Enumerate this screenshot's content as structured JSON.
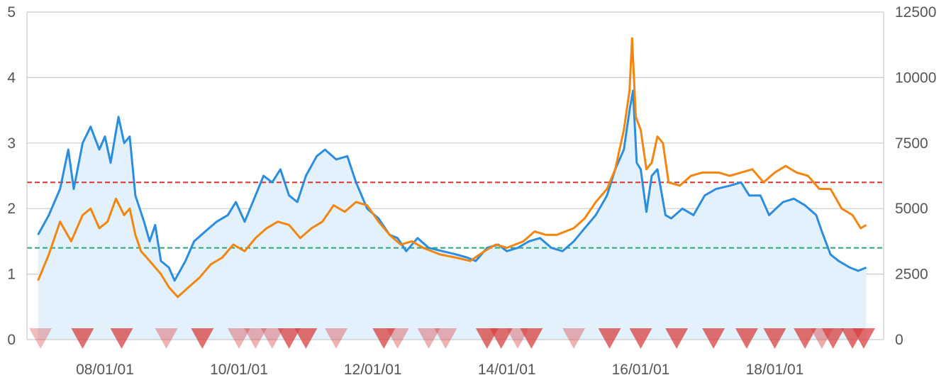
{
  "chart_data": {
    "type": "line",
    "x_domain": [
      "2007-01-01",
      "2018-12-01"
    ],
    "x_ticks": [
      {
        "label": "08/01/01",
        "date": "2008-01-01"
      },
      {
        "label": "10/01/01",
        "date": "2010-01-01"
      },
      {
        "label": "12/01/01",
        "date": "2012-01-01"
      },
      {
        "label": "14/01/01",
        "date": "2014-01-01"
      },
      {
        "label": "16/01/01",
        "date": "2016-01-01"
      },
      {
        "label": "18/01/01",
        "date": "2018-01-01"
      }
    ],
    "y_left": {
      "ylim": [
        0,
        5
      ],
      "ticks": [
        "0",
        "1",
        "2",
        "3",
        "4",
        "5"
      ]
    },
    "y_right": {
      "ylim": [
        0,
        12500
      ],
      "ticks": [
        "0",
        "2500",
        "5000",
        "7500",
        "10000",
        "12500"
      ]
    },
    "grid": true,
    "series": [
      {
        "color": "#2b8de0",
        "axis": "left",
        "fill": "#e3f1fc",
        "points": [
          [
            "2007-01-01",
            1.6
          ],
          [
            "2007-03-01",
            1.9
          ],
          [
            "2007-05-01",
            2.3
          ],
          [
            "2007-06-15",
            2.9
          ],
          [
            "2007-07-15",
            2.3
          ],
          [
            "2007-09-01",
            3.0
          ],
          [
            "2007-10-15",
            3.25
          ],
          [
            "2007-12-01",
            2.9
          ],
          [
            "2008-01-01",
            3.1
          ],
          [
            "2008-02-01",
            2.7
          ],
          [
            "2008-03-15",
            3.4
          ],
          [
            "2008-04-15",
            3.0
          ],
          [
            "2008-05-15",
            3.1
          ],
          [
            "2008-06-15",
            2.2
          ],
          [
            "2008-08-01",
            1.8
          ],
          [
            "2008-09-01",
            1.5
          ],
          [
            "2008-10-01",
            1.75
          ],
          [
            "2008-11-01",
            1.2
          ],
          [
            "2008-12-15",
            1.1
          ],
          [
            "2009-01-15",
            0.9
          ],
          [
            "2009-03-15",
            1.2
          ],
          [
            "2009-05-01",
            1.5
          ],
          [
            "2009-07-01",
            1.65
          ],
          [
            "2009-09-01",
            1.8
          ],
          [
            "2009-11-01",
            1.9
          ],
          [
            "2009-12-15",
            2.1
          ],
          [
            "2010-02-01",
            1.8
          ],
          [
            "2010-04-01",
            2.2
          ],
          [
            "2010-05-15",
            2.5
          ],
          [
            "2010-07-01",
            2.4
          ],
          [
            "2010-08-15",
            2.6
          ],
          [
            "2010-10-01",
            2.2
          ],
          [
            "2010-11-15",
            2.1
          ],
          [
            "2011-01-01",
            2.5
          ],
          [
            "2011-03-01",
            2.8
          ],
          [
            "2011-04-15",
            2.9
          ],
          [
            "2011-06-15",
            2.75
          ],
          [
            "2011-08-15",
            2.8
          ],
          [
            "2011-10-01",
            2.4
          ],
          [
            "2011-12-01",
            2.0
          ],
          [
            "2012-02-01",
            1.85
          ],
          [
            "2012-04-01",
            1.6
          ],
          [
            "2012-05-15",
            1.55
          ],
          [
            "2012-07-01",
            1.35
          ],
          [
            "2012-09-01",
            1.55
          ],
          [
            "2012-11-01",
            1.4
          ],
          [
            "2013-01-15",
            1.35
          ],
          [
            "2013-04-01",
            1.3
          ],
          [
            "2013-06-01",
            1.25
          ],
          [
            "2013-07-15",
            1.2
          ],
          [
            "2013-09-15",
            1.4
          ],
          [
            "2013-11-15",
            1.45
          ],
          [
            "2014-01-01",
            1.35
          ],
          [
            "2014-03-01",
            1.4
          ],
          [
            "2014-05-01",
            1.5
          ],
          [
            "2014-07-01",
            1.55
          ],
          [
            "2014-09-01",
            1.4
          ],
          [
            "2014-11-01",
            1.35
          ],
          [
            "2015-01-01",
            1.5
          ],
          [
            "2015-03-01",
            1.7
          ],
          [
            "2015-05-01",
            1.9
          ],
          [
            "2015-07-01",
            2.2
          ],
          [
            "2015-08-15",
            2.6
          ],
          [
            "2015-10-01",
            2.9
          ],
          [
            "2015-11-01",
            3.5
          ],
          [
            "2015-11-20",
            3.8
          ],
          [
            "2015-12-10",
            2.7
          ],
          [
            "2016-01-01",
            2.6
          ],
          [
            "2016-02-01",
            1.95
          ],
          [
            "2016-03-01",
            2.5
          ],
          [
            "2016-04-01",
            2.6
          ],
          [
            "2016-05-15",
            1.9
          ],
          [
            "2016-06-15",
            1.85
          ],
          [
            "2016-08-15",
            2.0
          ],
          [
            "2016-10-15",
            1.9
          ],
          [
            "2016-12-15",
            2.2
          ],
          [
            "2017-02-15",
            2.3
          ],
          [
            "2017-05-01",
            2.35
          ],
          [
            "2017-07-01",
            2.4
          ],
          [
            "2017-08-15",
            2.2
          ],
          [
            "2017-10-15",
            2.2
          ],
          [
            "2017-12-01",
            1.9
          ],
          [
            "2018-02-15",
            2.1
          ],
          [
            "2018-04-15",
            2.15
          ],
          [
            "2018-06-15",
            2.05
          ],
          [
            "2018-08-15",
            1.9
          ],
          [
            "2018-09-15",
            1.65
          ],
          [
            "2018-11-01",
            1.3
          ],
          [
            "2018-12-15",
            1.2
          ],
          [
            "2019-02-15",
            1.1
          ],
          [
            "2019-04-01",
            1.05
          ],
          [
            "2019-05-15",
            1.1
          ]
        ]
      },
      {
        "color": "#f4850e",
        "axis": "left",
        "points": [
          [
            "2007-01-01",
            0.9
          ],
          [
            "2007-03-01",
            1.3
          ],
          [
            "2007-05-01",
            1.8
          ],
          [
            "2007-07-01",
            1.5
          ],
          [
            "2007-09-01",
            1.9
          ],
          [
            "2007-10-15",
            2.0
          ],
          [
            "2007-12-01",
            1.7
          ],
          [
            "2008-01-15",
            1.8
          ],
          [
            "2008-03-01",
            2.15
          ],
          [
            "2008-04-15",
            1.9
          ],
          [
            "2008-05-15",
            2.0
          ],
          [
            "2008-06-15",
            1.6
          ],
          [
            "2008-07-15",
            1.35
          ],
          [
            "2008-09-01",
            1.2
          ],
          [
            "2008-11-01",
            1.0
          ],
          [
            "2008-12-15",
            0.8
          ],
          [
            "2009-02-01",
            0.65
          ],
          [
            "2009-04-01",
            0.8
          ],
          [
            "2009-06-01",
            0.95
          ],
          [
            "2009-08-01",
            1.15
          ],
          [
            "2009-10-01",
            1.25
          ],
          [
            "2009-12-01",
            1.45
          ],
          [
            "2010-02-01",
            1.35
          ],
          [
            "2010-04-01",
            1.55
          ],
          [
            "2010-06-01",
            1.7
          ],
          [
            "2010-08-01",
            1.8
          ],
          [
            "2010-10-01",
            1.75
          ],
          [
            "2010-12-01",
            1.55
          ],
          [
            "2011-02-01",
            1.7
          ],
          [
            "2011-04-01",
            1.8
          ],
          [
            "2011-06-01",
            2.05
          ],
          [
            "2011-08-01",
            1.95
          ],
          [
            "2011-10-01",
            2.1
          ],
          [
            "2011-12-01",
            2.05
          ],
          [
            "2012-02-01",
            1.8
          ],
          [
            "2012-04-01",
            1.6
          ],
          [
            "2012-06-01",
            1.45
          ],
          [
            "2012-08-01",
            1.5
          ],
          [
            "2012-10-01",
            1.4
          ],
          [
            "2013-01-01",
            1.3
          ],
          [
            "2013-04-01",
            1.25
          ],
          [
            "2013-06-15",
            1.2
          ],
          [
            "2013-09-01",
            1.35
          ],
          [
            "2013-11-01",
            1.45
          ],
          [
            "2014-01-01",
            1.4
          ],
          [
            "2014-04-01",
            1.5
          ],
          [
            "2014-06-01",
            1.65
          ],
          [
            "2014-08-01",
            1.6
          ],
          [
            "2014-10-01",
            1.6
          ],
          [
            "2015-01-01",
            1.7
          ],
          [
            "2015-03-01",
            1.85
          ],
          [
            "2015-05-01",
            2.1
          ],
          [
            "2015-07-01",
            2.3
          ],
          [
            "2015-08-15",
            2.6
          ],
          [
            "2015-10-01",
            3.2
          ],
          [
            "2015-11-01",
            3.8
          ],
          [
            "2015-11-15",
            4.6
          ],
          [
            "2015-12-05",
            3.4
          ],
          [
            "2016-01-01",
            3.2
          ],
          [
            "2016-02-01",
            2.6
          ],
          [
            "2016-03-01",
            2.7
          ],
          [
            "2016-04-01",
            3.1
          ],
          [
            "2016-05-01",
            3.0
          ],
          [
            "2016-06-01",
            2.4
          ],
          [
            "2016-08-01",
            2.35
          ],
          [
            "2016-10-01",
            2.5
          ],
          [
            "2016-12-01",
            2.55
          ],
          [
            "2017-03-01",
            2.55
          ],
          [
            "2017-05-01",
            2.5
          ],
          [
            "2017-07-01",
            2.55
          ],
          [
            "2017-09-01",
            2.6
          ],
          [
            "2017-11-01",
            2.4
          ],
          [
            "2018-01-01",
            2.55
          ],
          [
            "2018-03-01",
            2.65
          ],
          [
            "2018-05-01",
            2.55
          ],
          [
            "2018-07-01",
            2.5
          ],
          [
            "2018-09-01",
            2.3
          ],
          [
            "2018-11-01",
            2.3
          ],
          [
            "2019-01-01",
            2.0
          ],
          [
            "2019-03-01",
            1.9
          ],
          [
            "2019-04-15",
            1.7
          ],
          [
            "2019-05-15",
            1.75
          ]
        ]
      }
    ],
    "reference_lines": [
      {
        "value": 2.4,
        "color": "#e03030",
        "style": "dashed"
      },
      {
        "value": 1.4,
        "color": "#2aa879",
        "style": "dashed"
      }
    ],
    "markers": {
      "shape": "down-triangle",
      "color": "#d94040",
      "items": [
        {
          "date": "2007-01-15",
          "opacity": 0.35
        },
        {
          "date": "2007-09-01",
          "opacity": 0.75
        },
        {
          "date": "2008-04-01",
          "opacity": 0.75
        },
        {
          "date": "2008-12-01",
          "opacity": 0.4
        },
        {
          "date": "2009-06-15",
          "opacity": 0.75
        },
        {
          "date": "2010-01-01",
          "opacity": 0.4
        },
        {
          "date": "2010-04-01",
          "opacity": 0.4
        },
        {
          "date": "2010-07-01",
          "opacity": 0.4
        },
        {
          "date": "2010-10-01",
          "opacity": 0.75
        },
        {
          "date": "2011-01-01",
          "opacity": 0.75
        },
        {
          "date": "2011-06-15",
          "opacity": 0.4
        },
        {
          "date": "2012-03-01",
          "opacity": 0.75
        },
        {
          "date": "2012-05-15",
          "opacity": 0.4
        },
        {
          "date": "2012-11-01",
          "opacity": 0.4
        },
        {
          "date": "2013-02-01",
          "opacity": 0.4
        },
        {
          "date": "2013-09-15",
          "opacity": 0.75
        },
        {
          "date": "2013-12-01",
          "opacity": 0.75
        },
        {
          "date": "2014-03-01",
          "opacity": 0.4
        },
        {
          "date": "2014-05-15",
          "opacity": 0.75
        },
        {
          "date": "2015-01-01",
          "opacity": 0.4
        },
        {
          "date": "2015-07-15",
          "opacity": 0.75
        },
        {
          "date": "2016-01-01",
          "opacity": 0.75
        },
        {
          "date": "2016-07-15",
          "opacity": 0.75
        },
        {
          "date": "2017-02-01",
          "opacity": 0.75
        },
        {
          "date": "2017-08-01",
          "opacity": 0.75
        },
        {
          "date": "2018-01-01",
          "opacity": 0.75
        },
        {
          "date": "2018-06-15",
          "opacity": 0.75
        },
        {
          "date": "2018-09-15",
          "opacity": 0.45
        },
        {
          "date": "2018-11-15",
          "opacity": 0.75
        },
        {
          "date": "2019-03-01",
          "opacity": 0.75
        },
        {
          "date": "2019-05-01",
          "opacity": 0.75
        }
      ]
    }
  }
}
